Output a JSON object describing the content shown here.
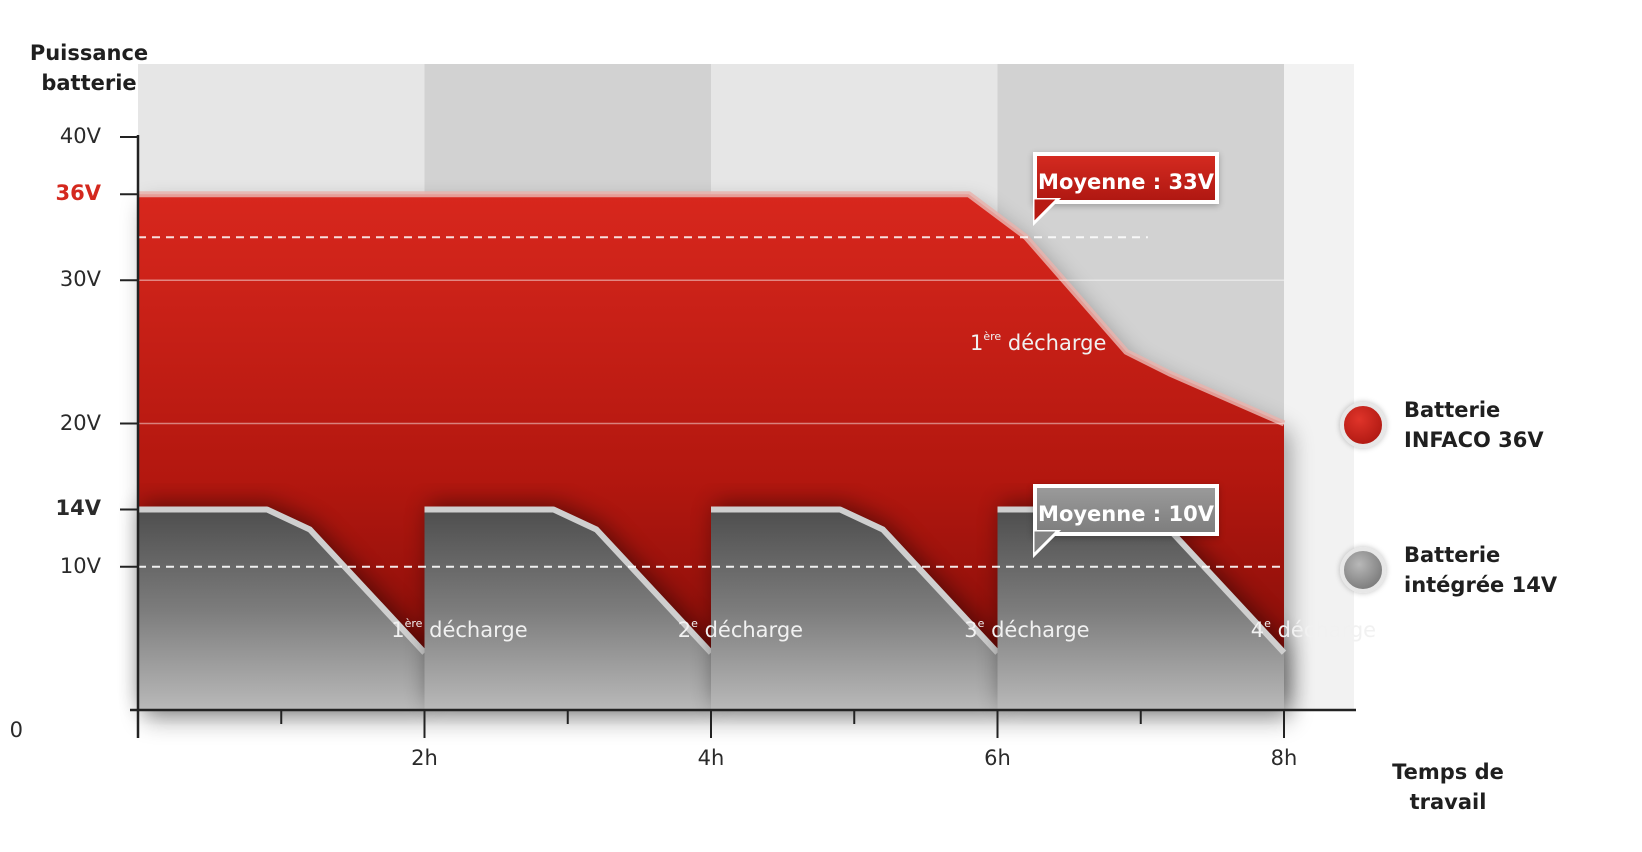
{
  "chart_data": {
    "type": "area",
    "ylabel": "Puissance batterie",
    "xlabel": "Temps de travail",
    "origin_label": "0",
    "xlim": [
      0,
      8
    ],
    "ylim": [
      0,
      40
    ],
    "x_ticks": [
      {
        "value": 2,
        "label": "2h"
      },
      {
        "value": 4,
        "label": "4h"
      },
      {
        "value": 6,
        "label": "6h"
      },
      {
        "value": 8,
        "label": "8h"
      }
    ],
    "x_minor_ticks": [
      0,
      1,
      2,
      3,
      4,
      5,
      6,
      7,
      8
    ],
    "y_ticks": [
      {
        "value": 40,
        "label": "40V",
        "style": "normal"
      },
      {
        "value": 36,
        "label": "36V",
        "style": "red-bold"
      },
      {
        "value": 30,
        "label": "30V",
        "style": "normal"
      },
      {
        "value": 20,
        "label": "20V",
        "style": "normal"
      },
      {
        "value": 14,
        "label": "14V",
        "style": "bold"
      },
      {
        "value": 10,
        "label": "10V",
        "style": "normal"
      }
    ],
    "grid_y": [
      30,
      20
    ],
    "series": [
      {
        "name": "Batterie INFACO 36V",
        "color": "#c41e15",
        "points": [
          [
            0,
            36
          ],
          [
            5.8,
            36
          ],
          [
            6.2,
            33
          ],
          [
            6.9,
            25
          ],
          [
            7.2,
            23.5
          ],
          [
            8,
            20
          ]
        ],
        "average": 33,
        "average_label": "Moyenne : 33V",
        "discharge_labels": [
          {
            "x": 5.1,
            "y": 25.5,
            "sup": "ère",
            "text": "décharge",
            "num": "1"
          }
        ]
      },
      {
        "name": "Batterie intégrée 14V",
        "color": "#6e6e6e",
        "segments": [
          [
            [
              0,
              14
            ],
            [
              0.9,
              14
            ],
            [
              1.2,
              12.6
            ],
            [
              2,
              4
            ]
          ],
          [
            [
              2,
              14
            ],
            [
              2.9,
              14
            ],
            [
              3.2,
              12.6
            ],
            [
              4,
              4
            ]
          ],
          [
            [
              4,
              14
            ],
            [
              4.9,
              14
            ],
            [
              5.2,
              12.6
            ],
            [
              6,
              4
            ]
          ],
          [
            [
              6,
              14
            ],
            [
              6.9,
              14
            ],
            [
              7.2,
              12.6
            ],
            [
              8,
              4
            ]
          ]
        ],
        "average": 10,
        "average_label": "Moyenne : 10V",
        "discharge_labels": [
          {
            "x": 1.0,
            "y": 5.5,
            "num": "1",
            "sup": "ère",
            "text": "décharge"
          },
          {
            "x": 3.0,
            "y": 5.5,
            "num": "2",
            "sup": "e",
            "text": "décharge"
          },
          {
            "x": 5.0,
            "y": 5.5,
            "num": "3",
            "sup": "e",
            "text": "décharge"
          },
          {
            "x": 7.0,
            "y": 5.5,
            "num": "4",
            "sup": "e",
            "text": "décharge"
          }
        ]
      }
    ],
    "legend_position": "right"
  },
  "colors": {
    "band_light": "#e6e6e6",
    "band_dark": "#d2d2d2",
    "red": "#c41e15",
    "red_dark": "#8e0f0a",
    "grey": "#6a6a6a",
    "accent_label": "#d4281e"
  }
}
